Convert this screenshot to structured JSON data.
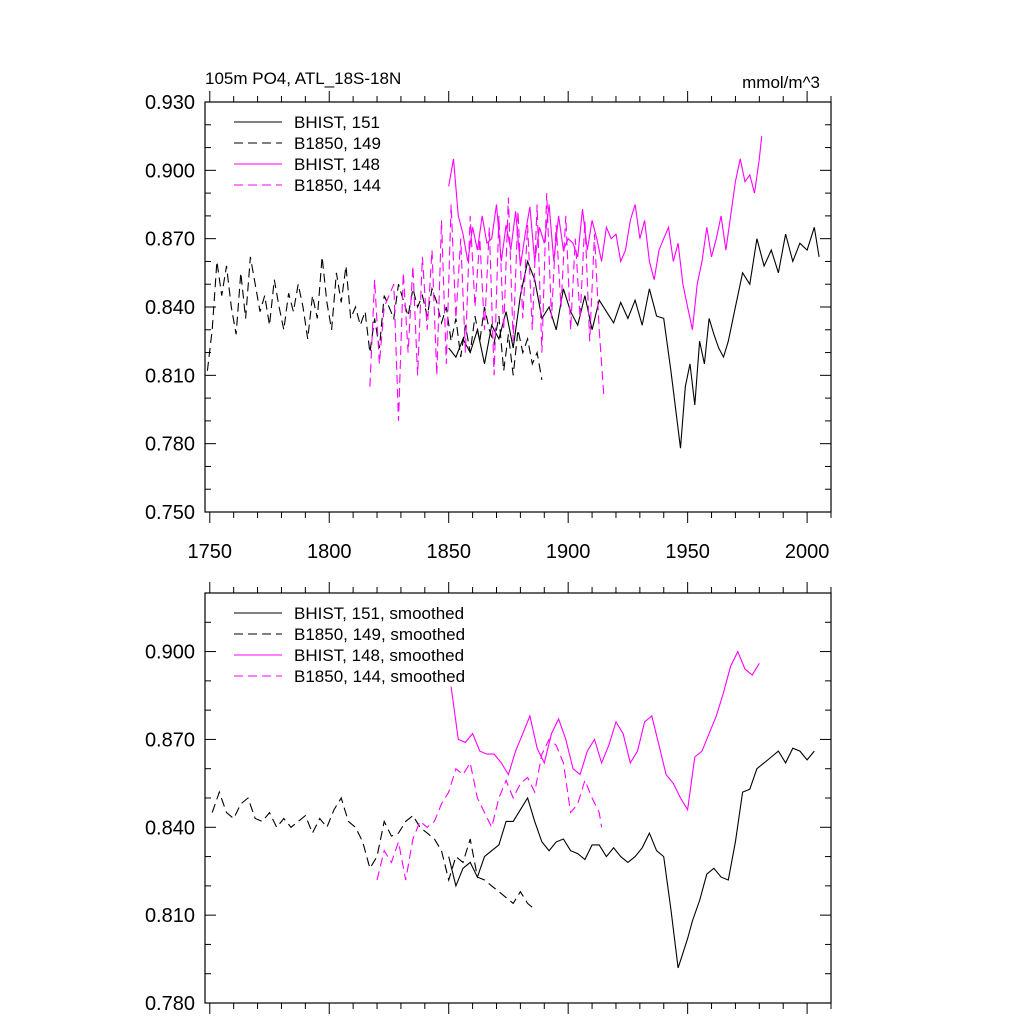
{
  "chart_data": [
    {
      "type": "line",
      "title": "105m PO4, ATL_18S-18N",
      "units": "mmol/m^3",
      "xlim": [
        1748,
        2010
      ],
      "ylim": [
        0.75,
        0.93
      ],
      "y_tick_labels": [
        "0.750",
        "0.780",
        "0.810",
        "0.840",
        "0.870",
        "0.900",
        "0.930"
      ],
      "x_tick_labels": [
        "1750",
        "1800",
        "1850",
        "1900",
        "1950",
        "2000"
      ],
      "legend": [
        "BHIST, 151",
        "B1850, 149",
        "BHIST, 148",
        "B1850, 144"
      ],
      "series": [
        {
          "name": "BHIST, 151",
          "color": "#000000",
          "style": "solid",
          "x": [
            1850,
            1853,
            1856,
            1859,
            1862,
            1865,
            1868,
            1871,
            1874,
            1877,
            1880,
            1883,
            1886,
            1889,
            1892,
            1895,
            1898,
            1901,
            1904,
            1907,
            1910,
            1913,
            1916,
            1919,
            1922,
            1925,
            1928,
            1931,
            1934,
            1937,
            1940,
            1943,
            1945,
            1947,
            1949,
            1951,
            1953,
            1955,
            1957,
            1959,
            1961,
            1963,
            1965,
            1967,
            1970,
            1973,
            1976,
            1979,
            1982,
            1985,
            1988,
            1991,
            1994,
            1997,
            2000,
            2003,
            2005
          ],
          "y": [
            0.822,
            0.818,
            0.826,
            0.82,
            0.83,
            0.815,
            0.832,
            0.826,
            0.838,
            0.822,
            0.845,
            0.86,
            0.852,
            0.835,
            0.84,
            0.83,
            0.848,
            0.838,
            0.832,
            0.845,
            0.83,
            0.843,
            0.838,
            0.833,
            0.842,
            0.835,
            0.843,
            0.832,
            0.848,
            0.836,
            0.835,
            0.812,
            0.795,
            0.778,
            0.805,
            0.815,
            0.797,
            0.825,
            0.815,
            0.835,
            0.828,
            0.822,
            0.818,
            0.825,
            0.84,
            0.855,
            0.85,
            0.87,
            0.858,
            0.865,
            0.855,
            0.872,
            0.86,
            0.868,
            0.865,
            0.875,
            0.862
          ]
        },
        {
          "name": "B1850, 149",
          "color": "#000000",
          "style": "dashed",
          "x": [
            1749,
            1751,
            1753,
            1755,
            1757,
            1759,
            1761,
            1763,
            1765,
            1767,
            1769,
            1771,
            1773,
            1775,
            1777,
            1779,
            1781,
            1783,
            1785,
            1787,
            1789,
            1791,
            1793,
            1795,
            1797,
            1799,
            1801,
            1803,
            1805,
            1807,
            1809,
            1811,
            1813,
            1815,
            1817,
            1819,
            1821,
            1823,
            1825,
            1827,
            1829,
            1831,
            1833,
            1835,
            1837,
            1839,
            1841,
            1843,
            1845,
            1847,
            1849,
            1851,
            1853,
            1855,
            1857,
            1859,
            1861,
            1863,
            1865,
            1867,
            1869,
            1871,
            1873,
            1875,
            1877,
            1879,
            1881,
            1883,
            1885,
            1887,
            1889
          ],
          "y": [
            0.812,
            0.83,
            0.86,
            0.845,
            0.858,
            0.84,
            0.828,
            0.855,
            0.835,
            0.862,
            0.85,
            0.838,
            0.845,
            0.832,
            0.852,
            0.84,
            0.83,
            0.846,
            0.838,
            0.85,
            0.84,
            0.826,
            0.845,
            0.835,
            0.862,
            0.842,
            0.83,
            0.855,
            0.842,
            0.858,
            0.835,
            0.84,
            0.832,
            0.838,
            0.82,
            0.835,
            0.822,
            0.845,
            0.84,
            0.835,
            0.85,
            0.843,
            0.836,
            0.848,
            0.84,
            0.845,
            0.836,
            0.848,
            0.842,
            0.833,
            0.84,
            0.825,
            0.835,
            0.818,
            0.832,
            0.82,
            0.836,
            0.825,
            0.84,
            0.83,
            0.824,
            0.836,
            0.812,
            0.828,
            0.81,
            0.83,
            0.82,
            0.826,
            0.815,
            0.82,
            0.808
          ]
        },
        {
          "name": "BHIST, 148",
          "color": "#ff00ff",
          "style": "solid",
          "x": [
            1850,
            1852,
            1854,
            1856,
            1858,
            1860,
            1862,
            1864,
            1866,
            1868,
            1870,
            1872,
            1874,
            1876,
            1878,
            1880,
            1882,
            1884,
            1886,
            1888,
            1890,
            1892,
            1894,
            1896,
            1898,
            1900,
            1902,
            1904,
            1906,
            1908,
            1910,
            1912,
            1914,
            1916,
            1918,
            1920,
            1922,
            1924,
            1926,
            1928,
            1930,
            1932,
            1934,
            1936,
            1938,
            1940,
            1942,
            1944,
            1946,
            1948,
            1950,
            1952,
            1954,
            1956,
            1958,
            1960,
            1962,
            1964,
            1966,
            1968,
            1970,
            1972,
            1974,
            1976,
            1978,
            1980,
            1981
          ],
          "y": [
            0.893,
            0.905,
            0.88,
            0.872,
            0.86,
            0.875,
            0.865,
            0.88,
            0.868,
            0.87,
            0.885,
            0.86,
            0.876,
            0.865,
            0.882,
            0.858,
            0.872,
            0.884,
            0.86,
            0.875,
            0.868,
            0.885,
            0.86,
            0.88,
            0.865,
            0.87,
            0.868,
            0.862,
            0.883,
            0.865,
            0.878,
            0.87,
            0.86,
            0.875,
            0.87,
            0.872,
            0.86,
            0.865,
            0.878,
            0.885,
            0.87,
            0.878,
            0.86,
            0.852,
            0.865,
            0.87,
            0.875,
            0.86,
            0.868,
            0.85,
            0.84,
            0.83,
            0.85,
            0.86,
            0.875,
            0.862,
            0.87,
            0.88,
            0.865,
            0.88,
            0.895,
            0.905,
            0.895,
            0.898,
            0.89,
            0.905,
            0.915
          ]
        },
        {
          "name": "B1850, 144",
          "color": "#ff00ff",
          "style": "dashed",
          "x": [
            1817,
            1819,
            1821,
            1823,
            1825,
            1827,
            1829,
            1831,
            1833,
            1835,
            1837,
            1839,
            1841,
            1843,
            1845,
            1847,
            1849,
            1851,
            1853,
            1855,
            1857,
            1859,
            1861,
            1863,
            1865,
            1867,
            1869,
            1871,
            1873,
            1875,
            1877,
            1879,
            1881,
            1883,
            1885,
            1887,
            1889,
            1891,
            1893,
            1895,
            1897,
            1899,
            1901,
            1903,
            1905,
            1907,
            1909,
            1911,
            1913,
            1915
          ],
          "y": [
            0.805,
            0.852,
            0.815,
            0.84,
            0.845,
            0.85,
            0.79,
            0.855,
            0.82,
            0.858,
            0.81,
            0.862,
            0.83,
            0.865,
            0.81,
            0.878,
            0.815,
            0.885,
            0.835,
            0.87,
            0.82,
            0.88,
            0.84,
            0.87,
            0.83,
            0.875,
            0.81,
            0.88,
            0.83,
            0.888,
            0.825,
            0.882,
            0.835,
            0.876,
            0.83,
            0.885,
            0.82,
            0.89,
            0.835,
            0.876,
            0.84,
            0.88,
            0.83,
            0.87,
            0.835,
            0.878,
            0.825,
            0.872,
            0.83,
            0.8
          ]
        }
      ]
    },
    {
      "type": "line",
      "title": "",
      "xlim": [
        1748,
        2010
      ],
      "ylim": [
        0.78,
        0.92
      ],
      "y_tick_labels": [
        "0.780",
        "0.810",
        "0.840",
        "0.870",
        "0.900"
      ],
      "legend": [
        "BHIST, 151, smoothed",
        "B1850, 149, smoothed",
        "BHIST, 148, smoothed",
        "B1850, 144, smoothed"
      ],
      "series": [
        {
          "name": "BHIST, 151, smoothed",
          "color": "#000000",
          "style": "solid",
          "x": [
            1850,
            1853,
            1856,
            1859,
            1862,
            1865,
            1868,
            1871,
            1874,
            1877,
            1880,
            1883,
            1886,
            1889,
            1892,
            1895,
            1898,
            1901,
            1904,
            1907,
            1910,
            1913,
            1916,
            1919,
            1922,
            1925,
            1928,
            1931,
            1934,
            1937,
            1940,
            1943,
            1946,
            1948,
            1950,
            1952,
            1955,
            1958,
            1961,
            1964,
            1967,
            1970,
            1973,
            1976,
            1979,
            1982,
            1985,
            1988,
            1991,
            1994,
            1997,
            2000,
            2003
          ],
          "y": [
            0.83,
            0.82,
            0.826,
            0.828,
            0.823,
            0.83,
            0.832,
            0.834,
            0.842,
            0.842,
            0.846,
            0.85,
            0.842,
            0.835,
            0.832,
            0.835,
            0.836,
            0.832,
            0.831,
            0.829,
            0.834,
            0.834,
            0.83,
            0.833,
            0.83,
            0.828,
            0.83,
            0.833,
            0.838,
            0.832,
            0.83,
            0.812,
            0.792,
            0.797,
            0.802,
            0.808,
            0.815,
            0.824,
            0.826,
            0.823,
            0.822,
            0.835,
            0.852,
            0.853,
            0.86,
            0.862,
            0.864,
            0.866,
            0.862,
            0.867,
            0.866,
            0.863,
            0.866
          ]
        },
        {
          "name": "B1850, 149, smoothed",
          "color": "#000000",
          "style": "dashed",
          "x": [
            1751,
            1754,
            1757,
            1760,
            1763,
            1766,
            1769,
            1772,
            1775,
            1778,
            1781,
            1784,
            1787,
            1790,
            1793,
            1796,
            1799,
            1802,
            1805,
            1808,
            1811,
            1814,
            1817,
            1820,
            1823,
            1826,
            1829,
            1832,
            1835,
            1838,
            1841,
            1844,
            1847,
            1850,
            1853,
            1856,
            1859,
            1862,
            1865,
            1868,
            1871,
            1874,
            1877,
            1880,
            1883,
            1886
          ],
          "y": [
            0.845,
            0.852,
            0.845,
            0.843,
            0.848,
            0.85,
            0.843,
            0.842,
            0.845,
            0.84,
            0.843,
            0.84,
            0.842,
            0.844,
            0.838,
            0.843,
            0.84,
            0.846,
            0.85,
            0.842,
            0.84,
            0.835,
            0.826,
            0.83,
            0.842,
            0.837,
            0.838,
            0.842,
            0.844,
            0.84,
            0.838,
            0.836,
            0.832,
            0.822,
            0.83,
            0.828,
            0.836,
            0.823,
            0.822,
            0.82,
            0.818,
            0.816,
            0.814,
            0.818,
            0.814,
            0.812
          ]
        },
        {
          "name": "BHIST, 148, smoothed",
          "color": "#ff00ff",
          "style": "solid",
          "x": [
            1851,
            1854,
            1857,
            1860,
            1863,
            1866,
            1869,
            1872,
            1875,
            1878,
            1881,
            1884,
            1887,
            1890,
            1893,
            1896,
            1899,
            1902,
            1905,
            1908,
            1911,
            1914,
            1917,
            1920,
            1923,
            1926,
            1929,
            1932,
            1935,
            1938,
            1941,
            1944,
            1947,
            1950,
            1953,
            1956,
            1959,
            1962,
            1965,
            1968,
            1971,
            1974,
            1977,
            1980
          ],
          "y": [
            0.888,
            0.87,
            0.869,
            0.872,
            0.866,
            0.865,
            0.865,
            0.862,
            0.858,
            0.866,
            0.872,
            0.878,
            0.867,
            0.862,
            0.872,
            0.877,
            0.87,
            0.86,
            0.858,
            0.866,
            0.87,
            0.862,
            0.868,
            0.876,
            0.872,
            0.862,
            0.866,
            0.876,
            0.878,
            0.868,
            0.858,
            0.855,
            0.85,
            0.846,
            0.864,
            0.866,
            0.872,
            0.878,
            0.886,
            0.895,
            0.9,
            0.894,
            0.892,
            0.896
          ]
        },
        {
          "name": "B1850, 144, smoothed",
          "color": "#ff00ff",
          "style": "dashed",
          "x": [
            1820,
            1823,
            1826,
            1829,
            1832,
            1835,
            1838,
            1841,
            1844,
            1847,
            1850,
            1853,
            1856,
            1859,
            1862,
            1865,
            1868,
            1871,
            1874,
            1877,
            1880,
            1883,
            1886,
            1889,
            1892,
            1895,
            1898,
            1901,
            1904,
            1907,
            1910,
            1913,
            1914
          ],
          "y": [
            0.822,
            0.832,
            0.828,
            0.835,
            0.822,
            0.836,
            0.842,
            0.84,
            0.842,
            0.848,
            0.852,
            0.86,
            0.858,
            0.862,
            0.85,
            0.845,
            0.84,
            0.85,
            0.856,
            0.85,
            0.855,
            0.857,
            0.852,
            0.865,
            0.87,
            0.868,
            0.862,
            0.845,
            0.848,
            0.856,
            0.85,
            0.845,
            0.84
          ]
        }
      ]
    }
  ]
}
